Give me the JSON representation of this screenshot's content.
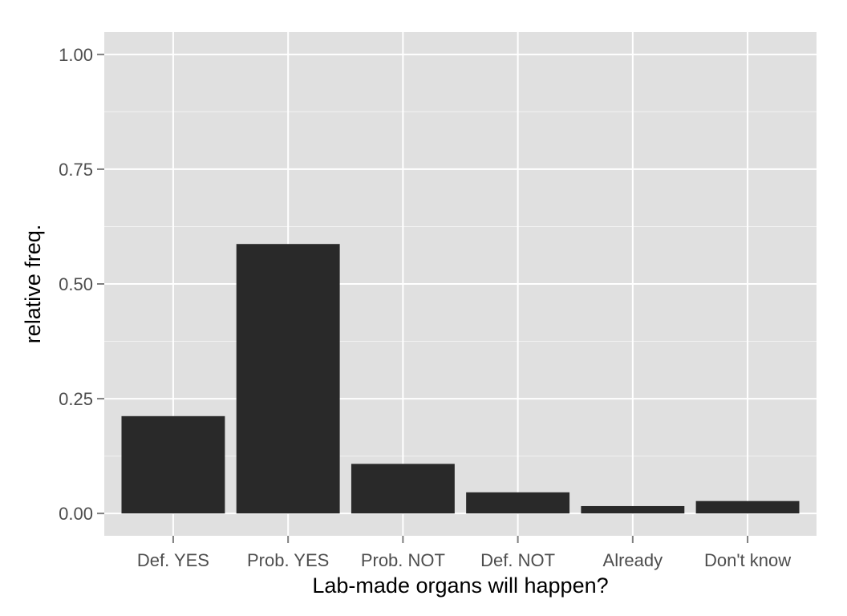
{
  "chart_data": {
    "type": "bar",
    "title": "",
    "xlabel": "Lab-made organs will happen?",
    "ylabel": "relative freq.",
    "categories": [
      "Def. YES",
      "Prob. YES",
      "Prob. NOT",
      "Def. NOT",
      "Already",
      "Don't know"
    ],
    "values": [
      0.212,
      0.587,
      0.108,
      0.046,
      0.016,
      0.027
    ],
    "ylim": [
      -0.0487,
      1.0487
    ],
    "yticks": [
      0,
      0.25,
      0.5,
      0.75,
      1.0
    ],
    "ytick_labels": [
      "0.00",
      "0.25",
      "0.50",
      "0.75",
      "1.00"
    ],
    "grid": true,
    "legend": "none",
    "colors": {
      "panel": "#e0e0e0",
      "grid": "#ffffff",
      "bar": "#292929",
      "tick_text": "#4d4d4d",
      "title_text": "#000000",
      "tick_mark": "#7f7f7f"
    }
  }
}
